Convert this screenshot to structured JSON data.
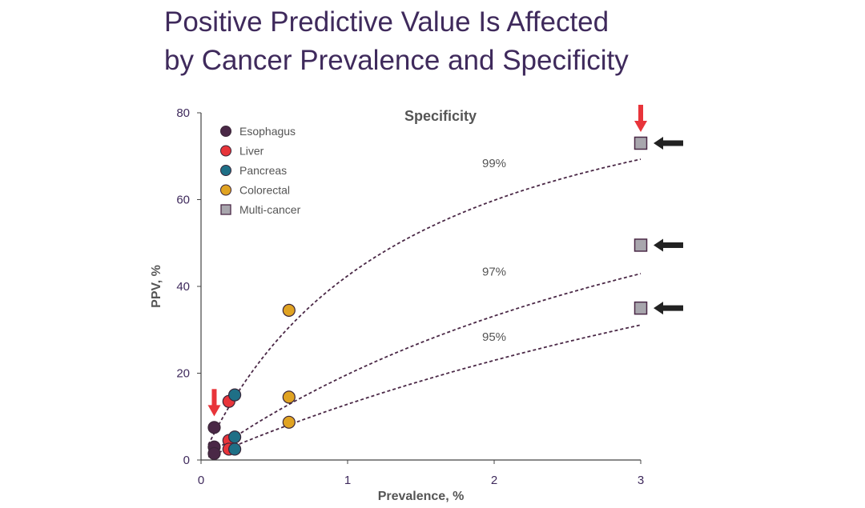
{
  "title": {
    "line1": "Positive Predictive Value Is Affected",
    "line2": "by Cancer Prevalence and Specificity"
  },
  "chart_data": {
    "type": "scatter",
    "title": "Specificity",
    "xlabel": "Prevalence, %",
    "ylabel": "PPV, %",
    "xlim": [
      0,
      3
    ],
    "ylim": [
      0,
      80
    ],
    "xticks": [
      0,
      1,
      2,
      3
    ],
    "yticks": [
      0,
      20,
      40,
      60,
      80
    ],
    "grid": false,
    "legend_position": "top-left",
    "legend": [
      {
        "label": "Esophagus",
        "color": "#4a2846",
        "marker": "circle"
      },
      {
        "label": "Liver",
        "color": "#e8343a",
        "marker": "circle"
      },
      {
        "label": "Pancreas",
        "color": "#1f6f86",
        "marker": "circle"
      },
      {
        "label": "Colorectal",
        "color": "#e0a322",
        "marker": "circle"
      },
      {
        "label": "Multi-cancer",
        "color": "#a8a6ad",
        "marker": "square"
      }
    ],
    "curve_color": "#4a2846",
    "curves": [
      {
        "label": "99%",
        "specificity": 0.99,
        "sensitivity": 0.73,
        "label_at": [
          2.0,
          67.5
        ]
      },
      {
        "label": "97%",
        "specificity": 0.97,
        "sensitivity": 0.73,
        "label_at": [
          2.0,
          42.5
        ]
      },
      {
        "label": "95%",
        "specificity": 0.95,
        "sensitivity": 0.73,
        "label_at": [
          2.0,
          27.5
        ]
      }
    ],
    "series": [
      {
        "name": "Esophagus",
        "points": [
          [
            0.09,
            7.5
          ],
          [
            0.09,
            3.0
          ],
          [
            0.09,
            1.5
          ]
        ]
      },
      {
        "name": "Liver",
        "points": [
          [
            0.19,
            13.5
          ],
          [
            0.19,
            4.5
          ],
          [
            0.19,
            2.5
          ]
        ]
      },
      {
        "name": "Pancreas",
        "points": [
          [
            0.23,
            15.0
          ],
          [
            0.23,
            5.3
          ],
          [
            0.23,
            2.5
          ]
        ]
      },
      {
        "name": "Colorectal",
        "points": [
          [
            0.6,
            34.5
          ],
          [
            0.6,
            14.5
          ],
          [
            0.6,
            8.7
          ]
        ]
      },
      {
        "name": "Multi-cancer",
        "points": [
          [
            3.0,
            73.0
          ],
          [
            3.0,
            49.5
          ],
          [
            3.0,
            35.0
          ]
        ]
      }
    ],
    "annotations": [
      {
        "type": "arrow-down",
        "color": "#e8343a",
        "at": [
          0.09,
          7.5
        ]
      },
      {
        "type": "arrow-down",
        "color": "#e8343a",
        "at": [
          3.0,
          73.0
        ]
      },
      {
        "type": "arrow-left",
        "color": "#222222",
        "at": [
          3.0,
          73.0
        ]
      },
      {
        "type": "arrow-left",
        "color": "#222222",
        "at": [
          3.0,
          49.5
        ]
      },
      {
        "type": "arrow-left",
        "color": "#222222",
        "at": [
          3.0,
          35.0
        ]
      }
    ]
  }
}
